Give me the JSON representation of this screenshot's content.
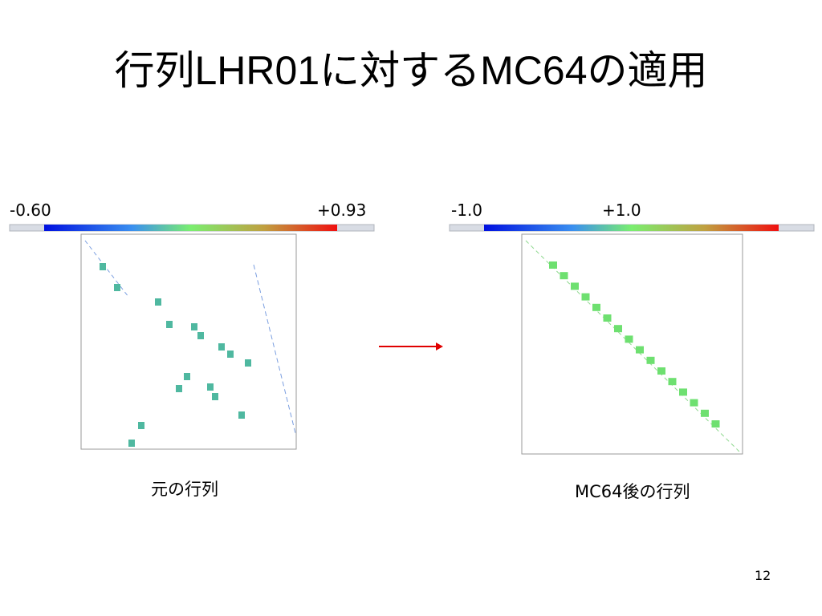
{
  "header": {
    "title": "行列LHR01に対するMC64の適用"
  },
  "left_panel": {
    "min_label": "-0.60",
    "max_label": "+0.93",
    "caption": "元の行列"
  },
  "right_panel": {
    "min_label": "-1.0",
    "max_label": "+1.0",
    "caption": "MC64後の行列"
  },
  "footer": {
    "page_number": "12"
  }
}
